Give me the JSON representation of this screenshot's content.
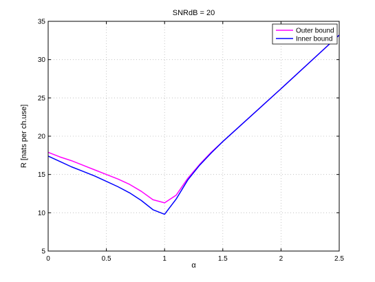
{
  "chart_data": {
    "type": "line",
    "title": "SNRdB = 20",
    "xlabel": "α",
    "ylabel": "R [nats per ch.use]",
    "xlim": [
      0,
      2.5
    ],
    "ylim": [
      5,
      35
    ],
    "xticks": [
      0,
      0.5,
      1,
      1.5,
      2,
      2.5
    ],
    "xtick_labels": [
      "0",
      "0.5",
      "1",
      "1.5",
      "2",
      "2.5"
    ],
    "yticks": [
      5,
      10,
      15,
      20,
      25,
      30,
      35
    ],
    "ytick_labels": [
      "5",
      "10",
      "15",
      "20",
      "25",
      "30",
      "35"
    ],
    "grid": true,
    "legend_position": "top-right",
    "series": [
      {
        "name": "Outer bound",
        "color": "#ff00ff",
        "x": [
          0,
          0.1,
          0.2,
          0.3,
          0.4,
          0.5,
          0.6,
          0.7,
          0.8,
          0.9,
          1.0,
          1.1,
          1.2,
          1.3,
          1.4,
          1.5,
          2.0,
          2.5
        ],
        "y": [
          17.9,
          17.3,
          16.8,
          16.2,
          15.6,
          15.0,
          14.4,
          13.7,
          12.8,
          11.7,
          11.3,
          12.3,
          14.5,
          16.3,
          17.9,
          19.3,
          26.2,
          33.2
        ]
      },
      {
        "name": "Inner bound",
        "color": "#0000ff",
        "x": [
          0,
          0.1,
          0.2,
          0.3,
          0.4,
          0.5,
          0.6,
          0.7,
          0.8,
          0.9,
          1.0,
          1.1,
          1.2,
          1.3,
          1.4,
          1.5,
          2.0,
          2.5
        ],
        "y": [
          17.4,
          16.7,
          16.0,
          15.4,
          14.8,
          14.1,
          13.4,
          12.6,
          11.6,
          10.4,
          9.8,
          11.8,
          14.3,
          16.2,
          17.8,
          19.3,
          26.2,
          33.2
        ]
      }
    ]
  }
}
